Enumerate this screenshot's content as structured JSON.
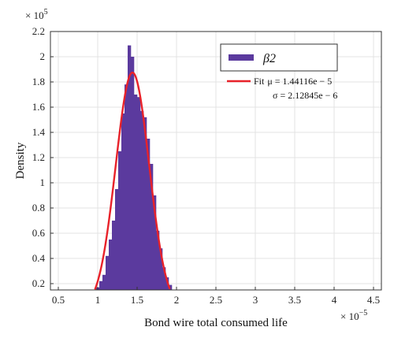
{
  "chart_data": {
    "type": "bar",
    "title": "",
    "xlabel": "Bond wire total consumed life",
    "ylabel": "Density",
    "x_multiplier": "× 10",
    "x_exponent": "−5",
    "y_multiplier": "× 10",
    "y_exponent": "5",
    "xlim": [
      0.4,
      4.6
    ],
    "ylim": [
      0.15,
      2.2
    ],
    "x_ticks": [
      0.5,
      1,
      1.5,
      2,
      2.5,
      3,
      3.5,
      4,
      4.5
    ],
    "x_tick_labels": [
      "0.5",
      "1",
      "1.5",
      "2",
      "2.5",
      "3",
      "3.5",
      "4",
      "4.5"
    ],
    "y_ticks": [
      0.2,
      0.4,
      0.6,
      0.8,
      1,
      1.2,
      1.4,
      1.6,
      1.8,
      2,
      2.2
    ],
    "y_tick_labels": [
      "0.2",
      "0.4",
      "0.6",
      "0.8",
      "1",
      "1.2",
      "1.4",
      "1.6",
      "1.8",
      "2",
      "2.2"
    ],
    "grid": true,
    "legend_position": "top-right",
    "series": [
      {
        "name": "β2",
        "kind": "histogram",
        "color": "#5b3a9e",
        "bin_width": 0.04,
        "bin_starts": [
          0.98,
          1.02,
          1.06,
          1.1,
          1.14,
          1.18,
          1.22,
          1.26,
          1.3,
          1.34,
          1.38,
          1.42,
          1.46,
          1.5,
          1.54,
          1.58,
          1.62,
          1.66,
          1.7,
          1.74,
          1.78,
          1.82,
          1.86,
          1.9
        ],
        "values": [
          0.17,
          0.22,
          0.27,
          0.42,
          0.55,
          0.7,
          0.95,
          1.25,
          1.55,
          1.78,
          2.09,
          2.0,
          1.7,
          1.68,
          1.57,
          1.52,
          1.35,
          1.15,
          0.9,
          0.62,
          0.48,
          0.33,
          0.25,
          0.19
        ]
      },
      {
        "name": "Fit",
        "kind": "normal-fit",
        "color": "#e8222a",
        "mu_label": "μ = 1.44116e − 5",
        "sigma_label": "σ = 2.12845e − 6",
        "mu": 1.44116,
        "sigma": 0.212845
      }
    ]
  }
}
